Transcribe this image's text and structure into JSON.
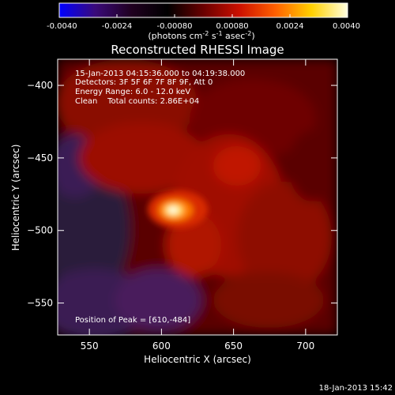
{
  "colorbar": {
    "tick_labels": [
      "-0.0040",
      "-0.0024",
      "-0.00080",
      "0.00080",
      "0.0024",
      "0.0040"
    ],
    "tick_values": [
      -0.004,
      -0.0024,
      -0.0008,
      0.0008,
      0.0024,
      0.004
    ],
    "range": [
      -0.004,
      0.004
    ],
    "unit_main": "(photons cm",
    "unit_sup1": "-2",
    "unit_mid": " s",
    "unit_sup2": "-1",
    "unit_end": " asec",
    "unit_sup3": "-2",
    "unit_close": ")",
    "colors": [
      "#0000ff",
      "#3a0a7a",
      "#200020",
      "#000000",
      "#6a0000",
      "#cc1000",
      "#ff6000",
      "#ffd000",
      "#ffffe0"
    ]
  },
  "chart_data": {
    "type": "heatmap",
    "title": "Reconstructed RHESSI Image",
    "xlabel": "Heliocentric X (arcsec)",
    "ylabel": "Heliocentric Y (arcsec)",
    "xlim": [
      528,
      722
    ],
    "ylim": [
      -572,
      -382
    ],
    "x_ticks": [
      550,
      600,
      650,
      700
    ],
    "y_ticks": [
      -400,
      -450,
      -500,
      -550
    ],
    "x_tick_labels": [
      "550",
      "600",
      "650",
      "700"
    ],
    "y_tick_labels": [
      "−400",
      "−450",
      "−500",
      "−550"
    ],
    "peak": [
      610,
      -484
    ],
    "annotations": {
      "time": "15-Jan-2013 04:15:36.000 to 04:19:38.000",
      "detectors": "Detectors: 3F 5F 6F 7F 8F 9F, Att 0",
      "energy": "Energy Range: 6.0 - 12.0 keV",
      "algo": "Clean    Total counts: 2.86E+04",
      "peak": "Position of Peak = [610,-484]"
    }
  },
  "footer": {
    "date": "18-Jan-2013 15:42"
  }
}
